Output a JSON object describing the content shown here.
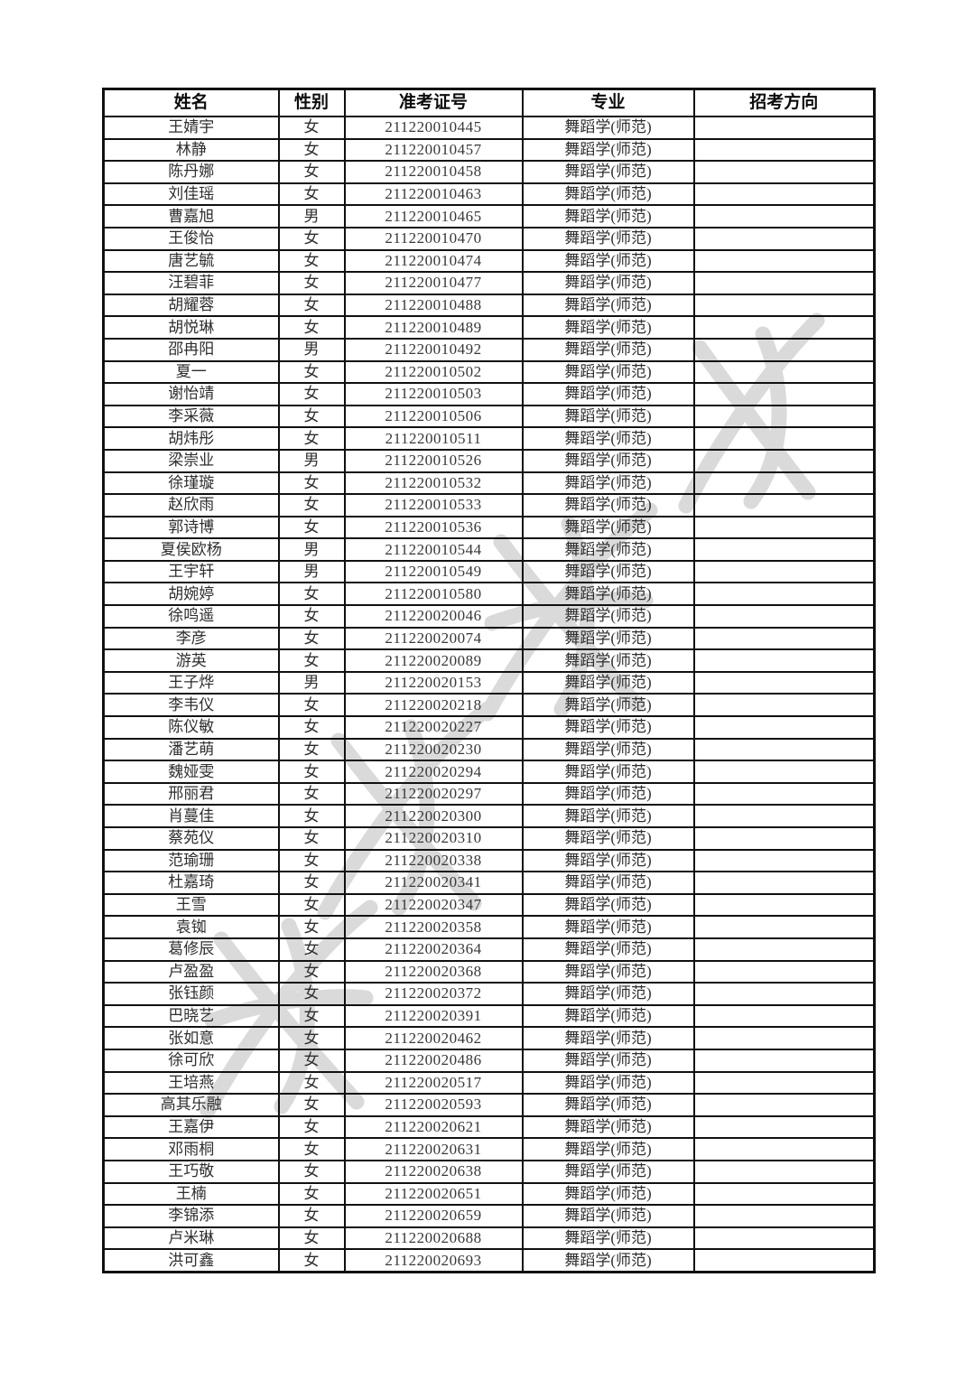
{
  "colors": {
    "table_border": "#101010",
    "cell_text": "#2e2e2e",
    "watermark_gray": "#dadada",
    "page_background": "#ffffff"
  },
  "table": {
    "headers": [
      "姓名",
      "性别",
      "准考证号",
      "专业",
      "招考方向"
    ],
    "rows": [
      [
        "王婧宇",
        "女",
        "211220010445",
        "舞蹈学(师范)",
        ""
      ],
      [
        "林静",
        "女",
        "211220010457",
        "舞蹈学(师范)",
        ""
      ],
      [
        "陈丹娜",
        "女",
        "211220010458",
        "舞蹈学(师范)",
        ""
      ],
      [
        "刘佳瑶",
        "女",
        "211220010463",
        "舞蹈学(师范)",
        ""
      ],
      [
        "曹嘉旭",
        "男",
        "211220010465",
        "舞蹈学(师范)",
        ""
      ],
      [
        "王俊怡",
        "女",
        "211220010470",
        "舞蹈学(师范)",
        ""
      ],
      [
        "唐艺毓",
        "女",
        "211220010474",
        "舞蹈学(师范)",
        ""
      ],
      [
        "汪碧菲",
        "女",
        "211220010477",
        "舞蹈学(师范)",
        ""
      ],
      [
        "胡耀蓉",
        "女",
        "211220010488",
        "舞蹈学(师范)",
        ""
      ],
      [
        "胡悦琳",
        "女",
        "211220010489",
        "舞蹈学(师范)",
        ""
      ],
      [
        "邵冉阳",
        "男",
        "211220010492",
        "舞蹈学(师范)",
        ""
      ],
      [
        "夏一",
        "女",
        "211220010502",
        "舞蹈学(师范)",
        ""
      ],
      [
        "谢怡靖",
        "女",
        "211220010503",
        "舞蹈学(师范)",
        ""
      ],
      [
        "李采薇",
        "女",
        "211220010506",
        "舞蹈学(师范)",
        ""
      ],
      [
        "胡炜彤",
        "女",
        "211220010511",
        "舞蹈学(师范)",
        ""
      ],
      [
        "梁崇业",
        "男",
        "211220010526",
        "舞蹈学(师范)",
        ""
      ],
      [
        "徐瑾璇",
        "女",
        "211220010532",
        "舞蹈学(师范)",
        ""
      ],
      [
        "赵欣雨",
        "女",
        "211220010533",
        "舞蹈学(师范)",
        ""
      ],
      [
        "郭诗博",
        "女",
        "211220010536",
        "舞蹈学(师范)",
        ""
      ],
      [
        "夏侯欧杨",
        "男",
        "211220010544",
        "舞蹈学(师范)",
        ""
      ],
      [
        "王宇轩",
        "男",
        "211220010549",
        "舞蹈学(师范)",
        ""
      ],
      [
        "胡婉婷",
        "女",
        "211220010580",
        "舞蹈学(师范)",
        ""
      ],
      [
        "徐鸣遥",
        "女",
        "211220020046",
        "舞蹈学(师范)",
        ""
      ],
      [
        "李彦",
        "女",
        "211220020074",
        "舞蹈学(师范)",
        ""
      ],
      [
        "游英",
        "女",
        "211220020089",
        "舞蹈学(师范)",
        ""
      ],
      [
        "王子烨",
        "男",
        "211220020153",
        "舞蹈学(师范)",
        ""
      ],
      [
        "李韦仪",
        "女",
        "211220020218",
        "舞蹈学(师范)",
        ""
      ],
      [
        "陈仪敏",
        "女",
        "211220020227",
        "舞蹈学(师范)",
        ""
      ],
      [
        "潘艺萌",
        "女",
        "211220020230",
        "舞蹈学(师范)",
        ""
      ],
      [
        "魏娅雯",
        "女",
        "211220020294",
        "舞蹈学(师范)",
        ""
      ],
      [
        "邢丽君",
        "女",
        "211220020297",
        "舞蹈学(师范)",
        ""
      ],
      [
        "肖蔓佳",
        "女",
        "211220020300",
        "舞蹈学(师范)",
        ""
      ],
      [
        "蔡苑仪",
        "女",
        "211220020310",
        "舞蹈学(师范)",
        ""
      ],
      [
        "范瑜珊",
        "女",
        "211220020338",
        "舞蹈学(师范)",
        ""
      ],
      [
        "杜嘉琦",
        "女",
        "211220020341",
        "舞蹈学(师范)",
        ""
      ],
      [
        "王雪",
        "女",
        "211220020347",
        "舞蹈学(师范)",
        ""
      ],
      [
        "袁铷",
        "女",
        "211220020358",
        "舞蹈学(师范)",
        ""
      ],
      [
        "葛修辰",
        "女",
        "211220020364",
        "舞蹈学(师范)",
        ""
      ],
      [
        "卢盈盈",
        "女",
        "211220020368",
        "舞蹈学(师范)",
        ""
      ],
      [
        "张钰颜",
        "女",
        "211220020372",
        "舞蹈学(师范)",
        ""
      ],
      [
        "巴晓艺",
        "女",
        "211220020391",
        "舞蹈学(师范)",
        ""
      ],
      [
        "张如意",
        "女",
        "211220020462",
        "舞蹈学(师范)",
        ""
      ],
      [
        "徐可欣",
        "女",
        "211220020486",
        "舞蹈学(师范)",
        ""
      ],
      [
        "王培燕",
        "女",
        "211220020517",
        "舞蹈学(师范)",
        ""
      ],
      [
        "高其乐融",
        "女",
        "211220020593",
        "舞蹈学(师范)",
        ""
      ],
      [
        "王嘉伊",
        "女",
        "211220020621",
        "舞蹈学(师范)",
        ""
      ],
      [
        "邓雨桐",
        "女",
        "211220020631",
        "舞蹈学(师范)",
        ""
      ],
      [
        "王巧敬",
        "女",
        "211220020638",
        "舞蹈学(师范)",
        ""
      ],
      [
        "王楠",
        "女",
        "211220020651",
        "舞蹈学(师范)",
        ""
      ],
      [
        "李锦添",
        "女",
        "211220020659",
        "舞蹈学(师范)",
        ""
      ],
      [
        "卢米琳",
        "女",
        "211220020688",
        "舞蹈学(师范)",
        ""
      ],
      [
        "洪可鑫",
        "女",
        "211220020693",
        "舞蹈学(师范)",
        ""
      ]
    ]
  }
}
